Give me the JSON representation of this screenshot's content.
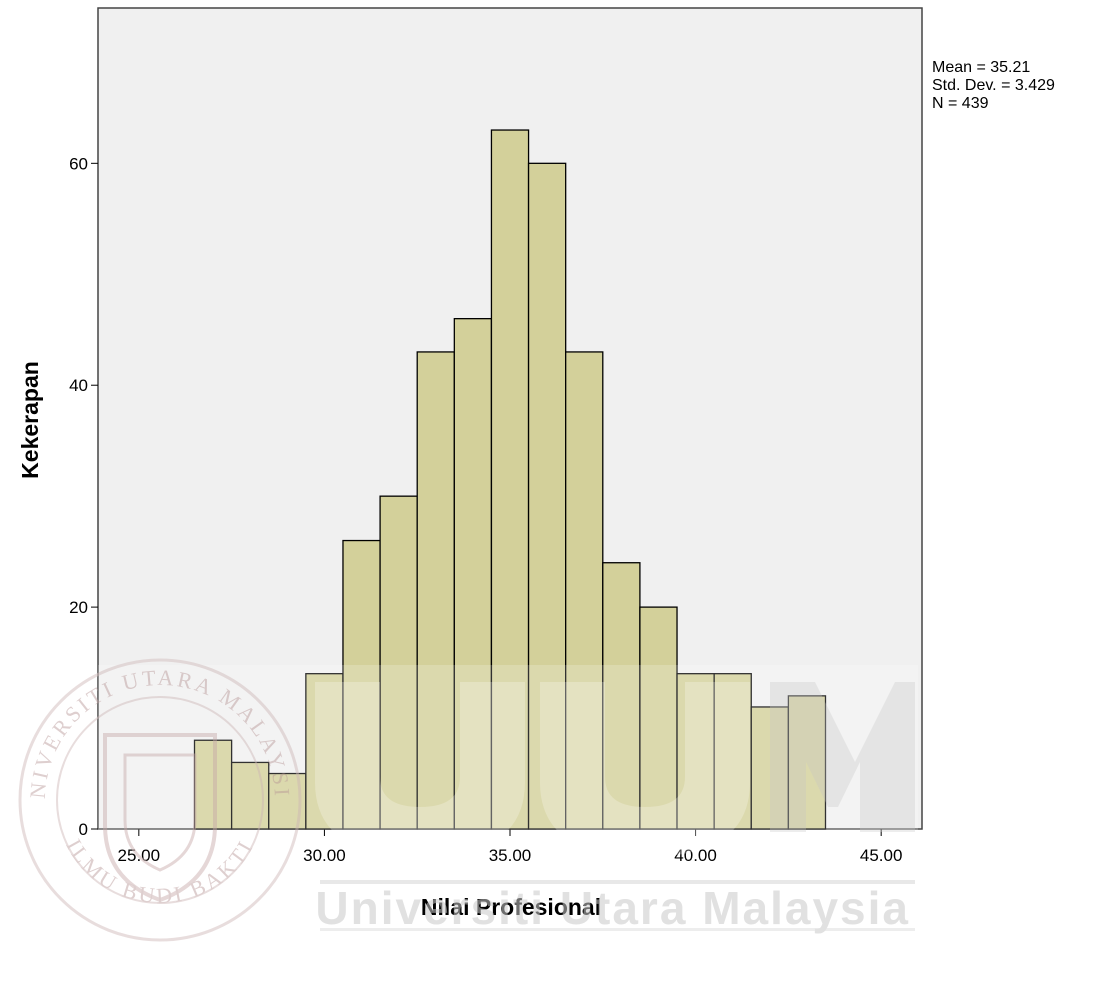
{
  "chart_data": {
    "type": "bar",
    "xlabel": "Nilai Profesional",
    "ylabel": "Kekerapan",
    "xlim": [
      23.9,
      46.1
    ],
    "ylim": [
      0,
      74
    ],
    "x_ticks": [
      25,
      30,
      35,
      40,
      45
    ],
    "x_tick_labels": [
      "25.00",
      "30.00",
      "35.00",
      "40.00",
      "45.00"
    ],
    "y_ticks": [
      0,
      20,
      40,
      60
    ],
    "y_tick_labels": [
      "0",
      "20",
      "40",
      "60"
    ],
    "grid": false,
    "bin_width": 1,
    "bars": [
      {
        "x0": 26.5,
        "x1": 27.5,
        "value": 8
      },
      {
        "x0": 27.5,
        "x1": 28.5,
        "value": 6
      },
      {
        "x0": 28.5,
        "x1": 29.5,
        "value": 5
      },
      {
        "x0": 29.5,
        "x1": 30.5,
        "value": 14
      },
      {
        "x0": 30.5,
        "x1": 31.5,
        "value": 26
      },
      {
        "x0": 31.5,
        "x1": 32.5,
        "value": 30
      },
      {
        "x0": 32.5,
        "x1": 33.5,
        "value": 43
      },
      {
        "x0": 33.5,
        "x1": 34.5,
        "value": 46
      },
      {
        "x0": 34.5,
        "x1": 35.5,
        "value": 63
      },
      {
        "x0": 35.5,
        "x1": 36.5,
        "value": 60
      },
      {
        "x0": 36.5,
        "x1": 37.5,
        "value": 43
      },
      {
        "x0": 37.5,
        "x1": 38.5,
        "value": 24
      },
      {
        "x0": 38.5,
        "x1": 39.5,
        "value": 20
      },
      {
        "x0": 39.5,
        "x1": 40.5,
        "value": 14
      },
      {
        "x0": 40.5,
        "x1": 41.5,
        "value": 14
      },
      {
        "x0": 41.5,
        "x1": 42.5,
        "value": 11
      },
      {
        "x0": 42.5,
        "x1": 43.5,
        "value": 12
      }
    ],
    "stats": [
      "Mean = 35.21",
      "Std. Dev. = 3.429",
      "N = 439"
    ],
    "colors": {
      "bar_fill": "#d3d09a",
      "bar_stroke": "#000000",
      "plot_background": "#f0f0f0"
    }
  },
  "watermark": {
    "text": "Universiti Utara Malaysia",
    "seal_top": "UNIVERSITI UTARA MALAYSIA",
    "seal_bottom": "ILMU BUDI BAKTI",
    "color": "#c9c9c9"
  }
}
